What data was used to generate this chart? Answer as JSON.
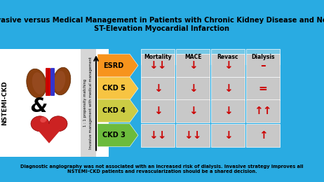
{
  "title": "Invasive versus Medical Management in Patients with Chronic Kidney Disease and Non-\nST-Elevation Myocardial Infarction",
  "title_bg": "#29ABE2",
  "title_color": "black",
  "bottom_text": "Diagnostic angiography was not associated with an increased risk of dialysis. Invasive strategy improves all\nNSTEMI-CKD patients and revascularization should be a shared decision.",
  "bottom_bg": "#29ABE2",
  "col_headers": [
    "Mortality",
    "MACE",
    "Revasc",
    "Dialysis"
  ],
  "row_labels": [
    "ESRD",
    "CKD 5",
    "CKD 4",
    "CKD 3"
  ],
  "row_colors": [
    "#F7941D",
    "#F7C442",
    "#CCCC44",
    "#6CBB3C"
  ],
  "left_bg": "white",
  "vert_label1": "1 : 1 propensity matching",
  "vert_label2": "Invasive management with medical management",
  "vert_bg": "#CCCCCC",
  "table_bg": "#C8C8C8",
  "header_bg": "#75C8E6",
  "symbols": [
    [
      "↓↓",
      "↓",
      "↓",
      "–"
    ],
    [
      "↓",
      "↓",
      "↓",
      "="
    ],
    [
      "↓",
      "↓",
      "↓",
      "↑↑"
    ],
    [
      "↓↓",
      "↓↓",
      "↓",
      "↑"
    ]
  ],
  "symbol_color": "#CC0000",
  "nstemi_label": "NSTEMI-CKD",
  "and_label": "&"
}
